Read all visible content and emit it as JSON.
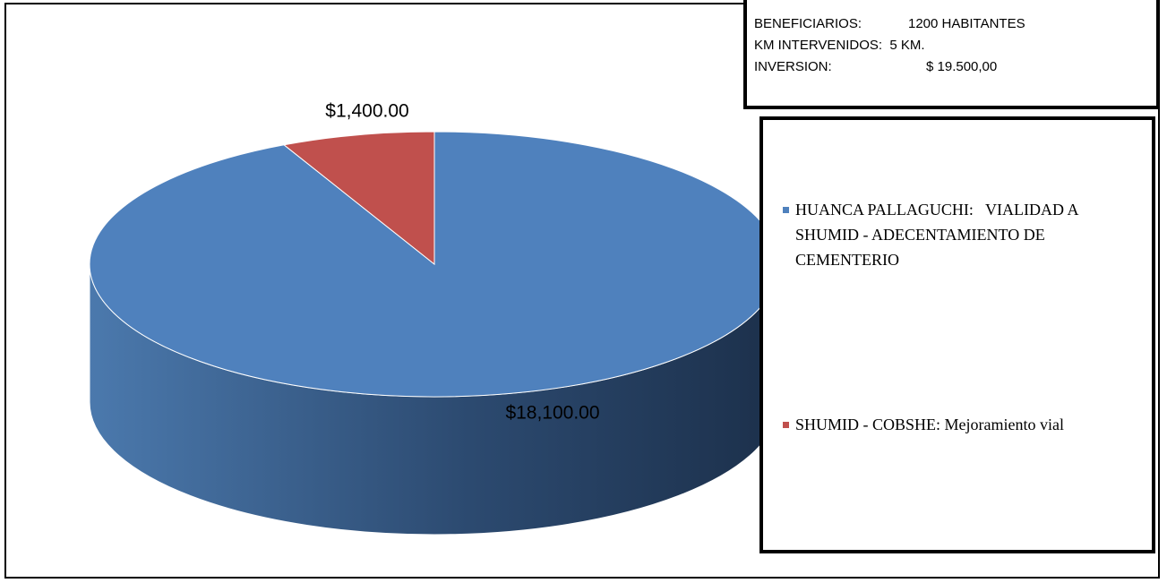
{
  "chart_data": {
    "type": "pie3d",
    "categories": [
      "HUANCA PALLAGUCHI:   VIALIDAD A SHUMID - ADECENTAMIENTO DE CEMENTERIO",
      "SHUMID - COBSHE: Mejoramiento vial"
    ],
    "values": [
      18100,
      1400
    ],
    "value_labels": [
      "$18,100.00",
      "$1,400.00"
    ],
    "colors": [
      "#4f81bd",
      "#c0504d"
    ],
    "legend": "right"
  },
  "info_box": {
    "lines": [
      [
        "BENEFICIARIOS:",
        "1200 HABITANTES"
      ],
      [
        "KM INTERVENIDOS:  5 KM."
      ],
      [
        "INVERSION:",
        "$ 19.500,00"
      ]
    ]
  }
}
